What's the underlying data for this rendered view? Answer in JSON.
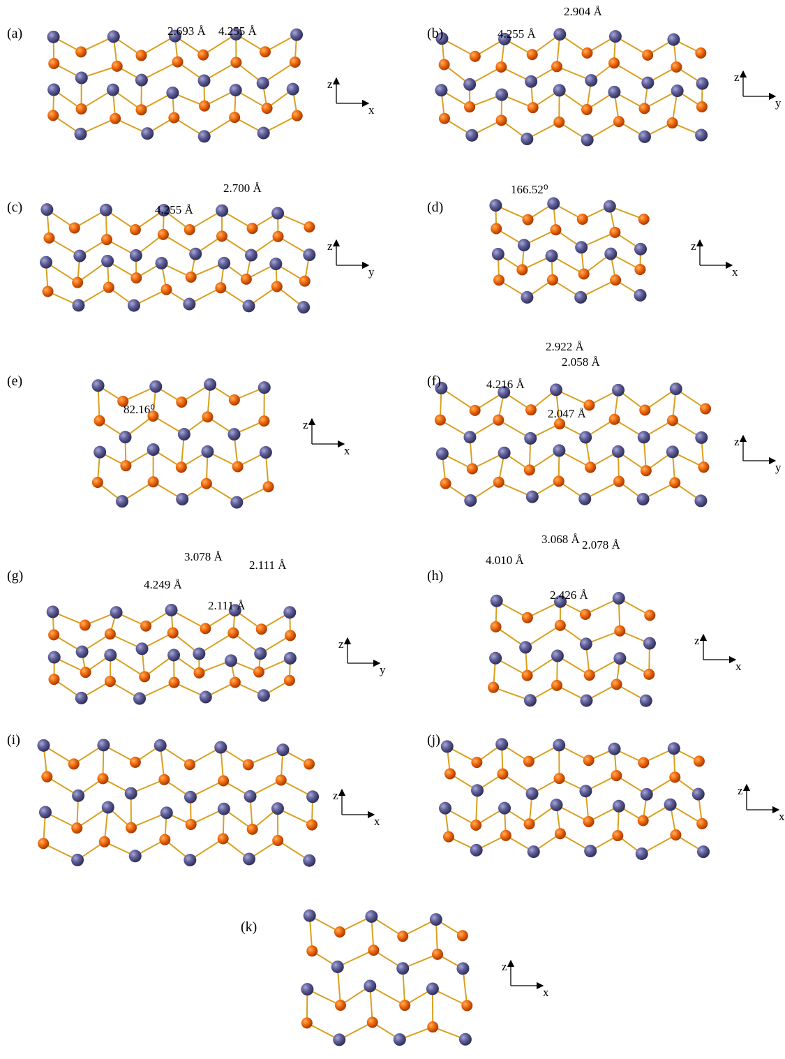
{
  "panels": [
    {
      "label": "(a)",
      "measurements": [
        "2.693 Å",
        "4.255 Å"
      ],
      "axes": {
        "vertical": "z",
        "horizontal": "x"
      }
    },
    {
      "label": "(b)",
      "measurements": [
        "2.904 Å",
        "4.255 Å"
      ],
      "axes": {
        "vertical": "z",
        "horizontal": "y"
      }
    },
    {
      "label": "(c)",
      "measurements": [
        "2.700 Å",
        "4.255 Å"
      ],
      "axes": {
        "vertical": "z",
        "horizontal": "y"
      }
    },
    {
      "label": "(d)",
      "measurements": [
        "166.52⁰"
      ],
      "axes": {
        "vertical": "z",
        "horizontal": "x"
      }
    },
    {
      "label": "(e)",
      "measurements": [
        "82.16⁰"
      ],
      "axes": {
        "vertical": "z",
        "horizontal": "x"
      }
    },
    {
      "label": "(f)",
      "measurements": [
        "2.922 Å",
        "2.058 Å",
        "4.216 Å",
        "2.047 Å"
      ],
      "axes": {
        "vertical": "z",
        "horizontal": "y"
      }
    },
    {
      "label": "(g)",
      "measurements": [
        "3.078 Å",
        "2.111 Å",
        "4.249 Å",
        "2.111 Å"
      ],
      "axes": {
        "vertical": "z",
        "horizontal": "y"
      }
    },
    {
      "label": "(h)",
      "measurements": [
        "3.068 Å",
        "2.078 Å",
        "4.010 Å",
        "2.426 Å"
      ],
      "axes": {
        "vertical": "z",
        "horizontal": "x"
      }
    },
    {
      "label": "(i)",
      "axes": {
        "vertical": "z",
        "horizontal": "x"
      }
    },
    {
      "label": "(j)",
      "axes": {
        "vertical": "z",
        "horizontal": "x"
      }
    },
    {
      "label": "(k)",
      "axes": {
        "vertical": "z",
        "horizontal": "x"
      }
    }
  ]
}
